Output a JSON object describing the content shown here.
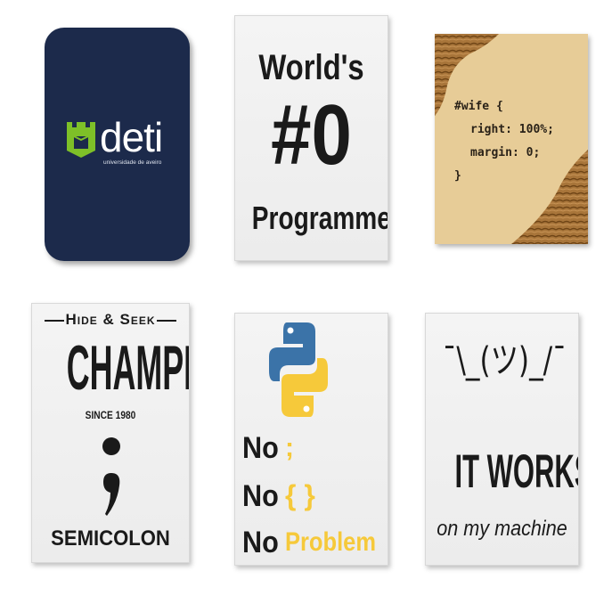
{
  "tiles": {
    "deti": {
      "logo_text": "deti",
      "subtitle": "universidade de aveiro",
      "colors": {
        "background": "#1c2a4b",
        "accent": "#7ec028",
        "text": "#ffffff"
      },
      "icon": "deti-logo-icon"
    },
    "worlds_zero": {
      "line1": "World's",
      "line2": "#0",
      "line3": "Programmer"
    },
    "wife_css": {
      "code_line1": "#wife {",
      "code_line2": "right: 100%;",
      "code_line3": "margin: 0;",
      "code_line4": "}",
      "colors": {
        "wood_light": "#e8cf9c",
        "wood_dark": "#9a6a2f"
      }
    },
    "hide_seek": {
      "line1": "Hide & Seek",
      "line2": "CHAMPION",
      "line3": "SINCE 1980",
      "line4": "SEMICOLON",
      "icon": "semicolon-icon"
    },
    "python": {
      "row1_word": "No",
      "row1_symbol": ";",
      "row2_word": "No",
      "row2_symbol": "{ }",
      "row3_word": "No",
      "row3_symbol": "Problem",
      "colors": {
        "python_blue": "#3b73a8",
        "python_yellow": "#f6c93a"
      },
      "icon": "python-logo-icon"
    },
    "it_works": {
      "shrug": "¯\\_(ツ)_/¯",
      "line1": "IT WORKS",
      "line2": "on my machine"
    }
  }
}
